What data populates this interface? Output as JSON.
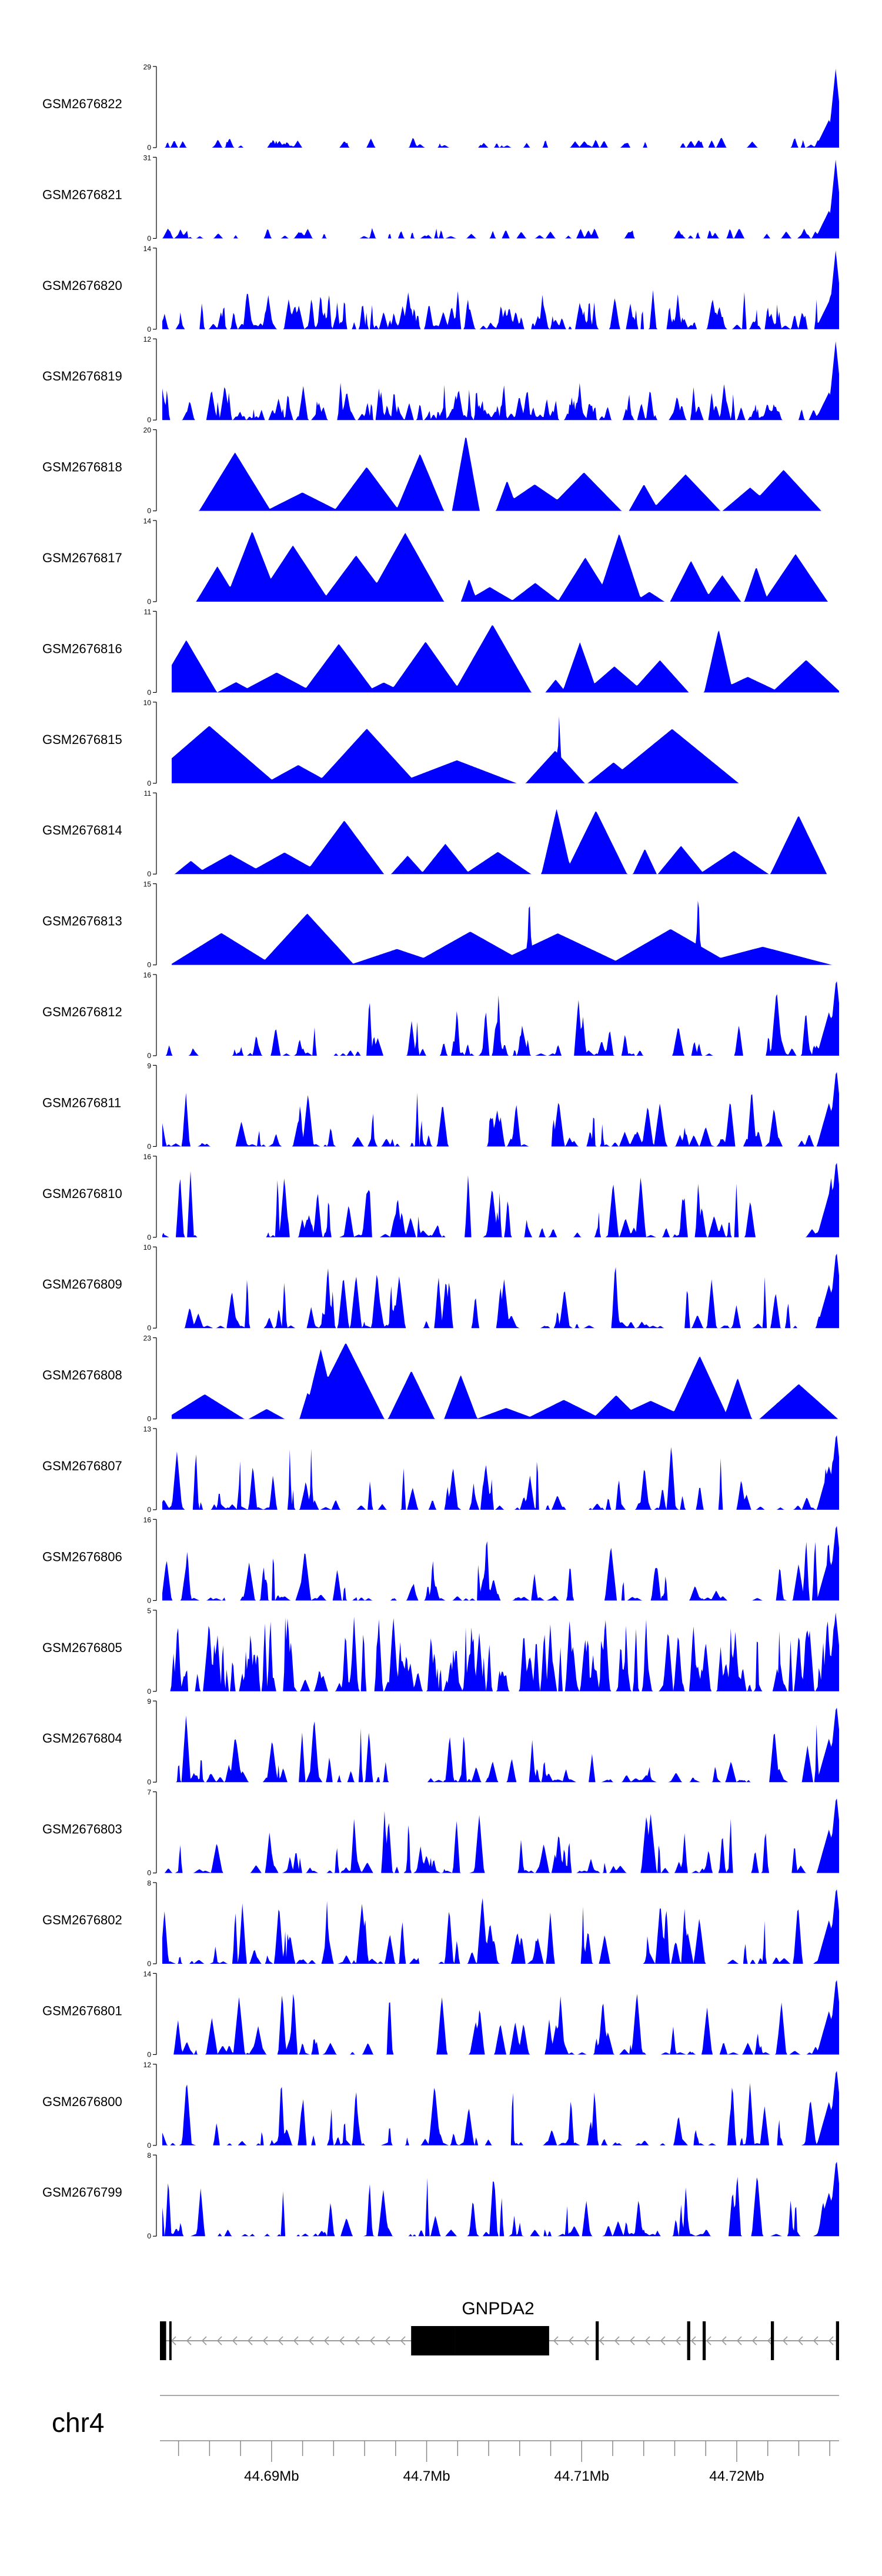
{
  "chart_data": {
    "type": "area",
    "title": "",
    "colors": {
      "track_fill": "#0000ff",
      "axis": "#000000",
      "gene": "#000000",
      "intron": "#999999"
    },
    "tracks": [
      {
        "name": "GSM2676822",
        "ymax": 29,
        "ymin": 0,
        "profile": "flat_end"
      },
      {
        "name": "GSM2676821",
        "ymax": 31,
        "ymin": 0,
        "profile": "flat_end"
      },
      {
        "name": "GSM2676820",
        "ymax": 14,
        "ymin": 0,
        "profile": "dense"
      },
      {
        "name": "GSM2676819",
        "ymax": 12,
        "ymin": 0,
        "profile": "dense"
      },
      {
        "name": "GSM2676818",
        "ymax": 20,
        "ymin": 0,
        "profile": "sparse_tri"
      },
      {
        "name": "GSM2676817",
        "ymax": 14,
        "ymin": 0,
        "profile": "sparse_tri"
      },
      {
        "name": "GSM2676816",
        "ymax": 11,
        "ymin": 0,
        "profile": "sparse_tri"
      },
      {
        "name": "GSM2676815",
        "ymax": 10,
        "ymin": 0,
        "profile": "big_tri"
      },
      {
        "name": "GSM2676814",
        "ymax": 11,
        "ymin": 0,
        "profile": "sparse_tri"
      },
      {
        "name": "GSM2676813",
        "ymax": 15,
        "ymin": 0,
        "profile": "big_tri"
      },
      {
        "name": "GSM2676812",
        "ymax": 16,
        "ymin": 0,
        "profile": "medium"
      },
      {
        "name": "GSM2676811",
        "ymax": 9,
        "ymin": 0,
        "profile": "medium"
      },
      {
        "name": "GSM2676810",
        "ymax": 16,
        "ymin": 0,
        "profile": "medium"
      },
      {
        "name": "GSM2676809",
        "ymax": 10,
        "ymin": 0,
        "profile": "medium"
      },
      {
        "name": "GSM2676808",
        "ymax": 23,
        "ymin": 0,
        "profile": "sparse_tri"
      },
      {
        "name": "GSM2676807",
        "ymax": 13,
        "ymin": 0,
        "profile": "medium"
      },
      {
        "name": "GSM2676806",
        "ymax": 16,
        "ymin": 0,
        "profile": "medium"
      },
      {
        "name": "GSM2676805",
        "ymax": 5,
        "ymin": 0,
        "profile": "dense_tall"
      },
      {
        "name": "GSM2676804",
        "ymax": 9,
        "ymin": 0,
        "profile": "medium"
      },
      {
        "name": "GSM2676803",
        "ymax": 7,
        "ymin": 0,
        "profile": "medium"
      },
      {
        "name": "GSM2676802",
        "ymax": 8,
        "ymin": 0,
        "profile": "medium"
      },
      {
        "name": "GSM2676801",
        "ymax": 14,
        "ymin": 0,
        "profile": "medium"
      },
      {
        "name": "GSM2676800",
        "ymax": 12,
        "ymin": 0,
        "profile": "medium"
      },
      {
        "name": "GSM2676799",
        "ymax": 8,
        "ymin": 0,
        "profile": "medium"
      }
    ],
    "gene": {
      "name": "GNPDA2",
      "strand": "-",
      "start_mb": 44.6828,
      "end_mb": 44.7266,
      "exons_mb": [
        [
          44.6828,
          44.6832
        ],
        [
          44.6834,
          44.6835
        ],
        [
          44.699,
          44.7018
        ],
        [
          44.7018,
          44.7079
        ],
        [
          44.7109,
          44.7111
        ],
        [
          44.7168,
          44.717
        ],
        [
          44.7178,
          44.718
        ],
        [
          44.7222,
          44.7224
        ],
        [
          44.7264,
          44.7266
        ]
      ]
    },
    "chromosome": "chr4",
    "x_axis": {
      "xlim_mb": [
        44.6828,
        44.7266
      ],
      "labeled_ticks": [
        "44.69Mb",
        "44.7Mb",
        "44.71Mb",
        "44.72Mb"
      ],
      "labeled_tick_values": [
        44.69,
        44.7,
        44.71,
        44.72
      ],
      "minor_tick_step_mb": 0.002
    },
    "grid": false,
    "legend": "none"
  }
}
